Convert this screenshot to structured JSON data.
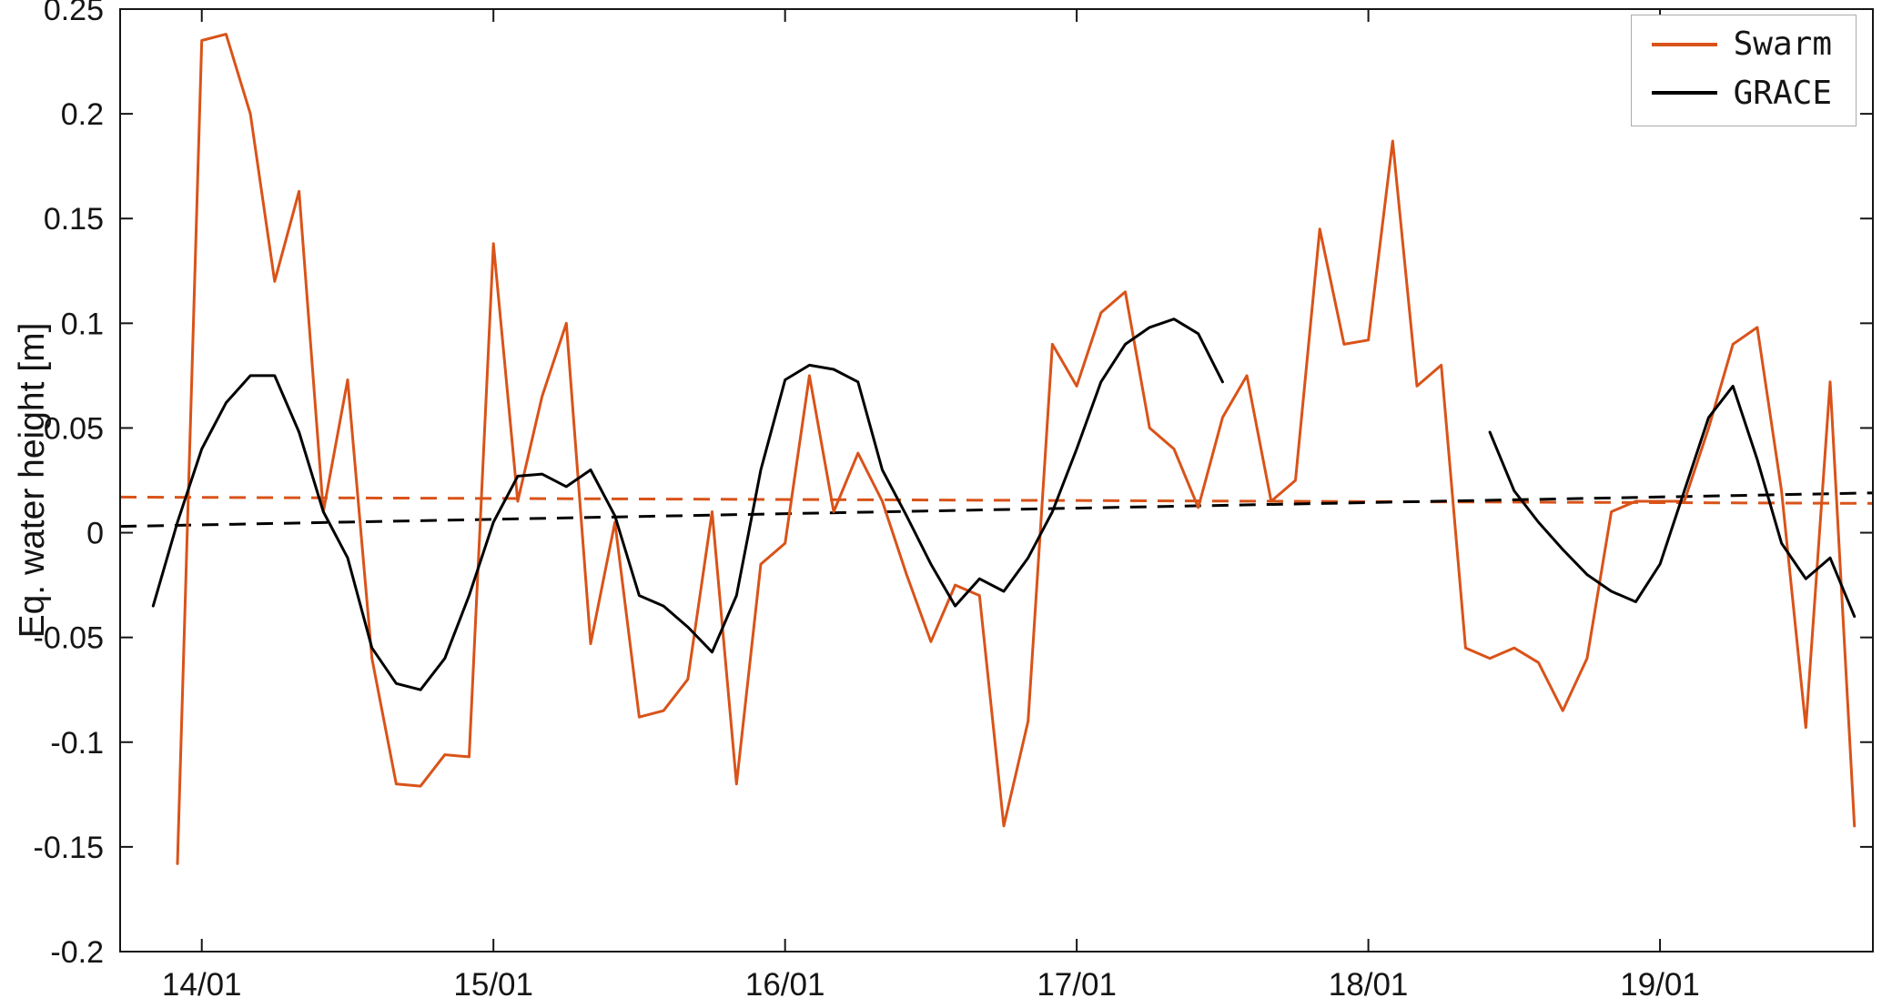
{
  "figure": {
    "background": "#ffffff",
    "ylabel": "Eq. water height [m]"
  },
  "legend": {
    "items": [
      {
        "label": "Swarm",
        "color": "#d95319",
        "style": "solid"
      },
      {
        "label": "GRACE",
        "color": "#000000",
        "style": "solid"
      }
    ]
  },
  "chart_data": {
    "type": "line",
    "title": "",
    "xlabel": "",
    "ylabel": "Eq. water height [m]",
    "grid": false,
    "legend_position": "top-right",
    "xlim": [
      2013.72,
      2019.73
    ],
    "ylim": [
      -0.2,
      0.25
    ],
    "x_tick_values": [
      2014,
      2015,
      2016,
      2017,
      2018,
      2019
    ],
    "x_tick_labels": [
      "14/01",
      "15/01",
      "16/01",
      "17/01",
      "18/01",
      "19/01"
    ],
    "y_tick_values": [
      -0.2,
      -0.15,
      -0.1,
      -0.05,
      0,
      0.05,
      0.1,
      0.15,
      0.2,
      0.25
    ],
    "y_tick_labels": [
      "-0.2",
      "-0.15",
      "-0.1",
      "-0.05",
      "0",
      "0.05",
      "0.1",
      "0.15",
      "0.2",
      "0.25"
    ],
    "months": [
      "2013-11",
      "2013-12",
      "2014-01",
      "2014-02",
      "2014-03",
      "2014-04",
      "2014-05",
      "2014-06",
      "2014-07",
      "2014-08",
      "2014-09",
      "2014-10",
      "2014-11",
      "2014-12",
      "2015-01",
      "2015-02",
      "2015-03",
      "2015-04",
      "2015-05",
      "2015-06",
      "2015-07",
      "2015-08",
      "2015-09",
      "2015-10",
      "2015-11",
      "2015-12",
      "2016-01",
      "2016-02",
      "2016-03",
      "2016-04",
      "2016-05",
      "2016-06",
      "2016-07",
      "2016-08",
      "2016-09",
      "2016-10",
      "2016-11",
      "2016-12",
      "2017-01",
      "2017-02",
      "2017-03",
      "2017-04",
      "2017-05",
      "2017-06",
      "2017-07",
      "2017-08",
      "2017-09",
      "2017-10",
      "2017-11",
      "2017-12",
      "2018-01",
      "2018-02",
      "2018-03",
      "2018-04",
      "2018-05",
      "2018-06",
      "2018-07",
      "2018-08",
      "2018-09",
      "2018-10",
      "2018-11",
      "2018-12",
      "2019-01",
      "2019-02",
      "2019-03",
      "2019-04",
      "2019-05",
      "2019-06",
      "2019-07",
      "2019-08",
      "2019-09"
    ],
    "series": [
      {
        "name": "Swarm",
        "color": "#d95319",
        "width": 3,
        "values": [
          null,
          -0.158,
          0.235,
          0.238,
          0.2,
          0.12,
          0.163,
          0.01,
          0.073,
          -0.06,
          -0.12,
          -0.121,
          -0.106,
          -0.107,
          0.138,
          0.015,
          0.065,
          0.1,
          -0.053,
          0.005,
          -0.088,
          -0.085,
          -0.07,
          0.01,
          -0.12,
          -0.015,
          -0.005,
          0.075,
          0.01,
          0.038,
          0.015,
          -0.02,
          -0.052,
          -0.025,
          -0.03,
          -0.14,
          -0.09,
          0.09,
          0.07,
          0.105,
          0.115,
          0.05,
          0.04,
          0.012,
          0.055,
          0.075,
          0.015,
          0.025,
          0.145,
          0.09,
          0.092,
          0.187,
          0.07,
          0.08,
          -0.055,
          -0.06,
          -0.055,
          -0.062,
          -0.085,
          -0.06,
          0.01,
          0.015,
          0.015,
          0.015,
          0.05,
          0.09,
          0.098,
          0.02,
          -0.093,
          0.072,
          -0.14
        ]
      },
      {
        "name": "GRACE",
        "color": "#000000",
        "width": 3,
        "values": [
          -0.035,
          0.005,
          0.04,
          0.062,
          0.075,
          0.075,
          0.048,
          0.01,
          -0.012,
          -0.055,
          -0.072,
          -0.075,
          -0.06,
          -0.03,
          0.005,
          0.027,
          0.028,
          0.022,
          0.03,
          0.008,
          -0.03,
          -0.035,
          -0.045,
          -0.057,
          -0.03,
          0.03,
          0.073,
          0.08,
          0.078,
          0.072,
          0.03,
          0.008,
          -0.015,
          -0.035,
          -0.022,
          -0.028,
          -0.012,
          0.01,
          0.04,
          0.072,
          0.09,
          0.098,
          0.102,
          0.095,
          0.072,
          null,
          null,
          null,
          null,
          null,
          null,
          null,
          null,
          null,
          null,
          0.048,
          0.02,
          0.005,
          -0.008,
          -0.02,
          -0.028,
          -0.033,
          -0.015,
          0.02,
          0.055,
          0.07,
          0.035,
          -0.005,
          -0.022,
          -0.012,
          -0.04
        ]
      }
    ],
    "trend_lines": [
      {
        "name": "Swarm mean trend",
        "color": "#d95319",
        "dashed": true,
        "start_value": 0.017,
        "end_value": 0.014
      },
      {
        "name": "GRACE mean trend",
        "color": "#000000",
        "dashed": true,
        "start_value": 0.003,
        "end_value": 0.019
      }
    ]
  }
}
